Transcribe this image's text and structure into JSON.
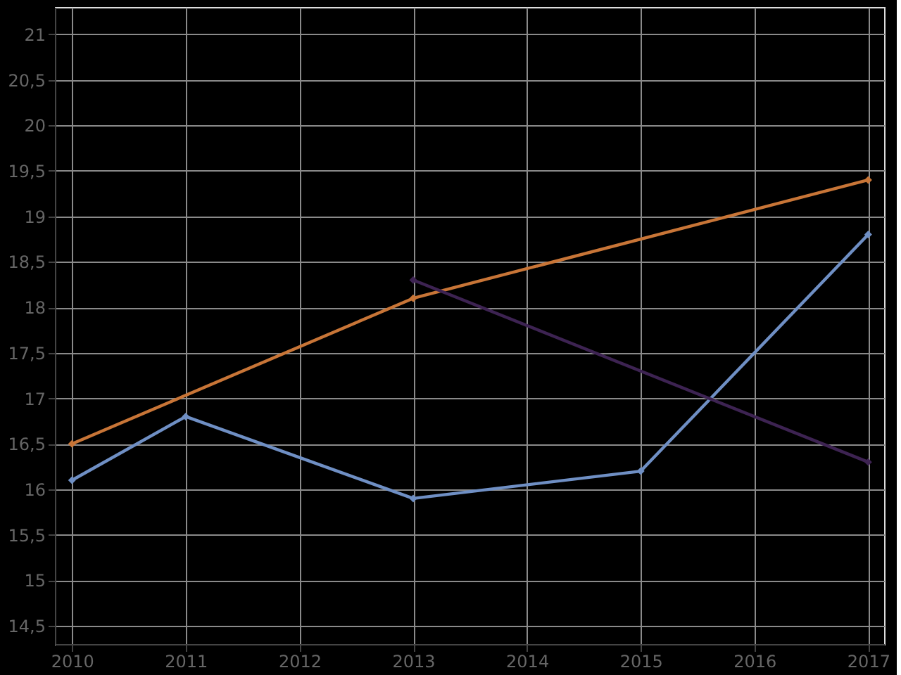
{
  "chart_data": {
    "type": "line",
    "series": [
      {
        "color": "#c87537",
        "x": [
          2010,
          2013,
          2017
        ],
        "values": [
          16.5,
          18.1,
          19.4
        ]
      },
      {
        "color": "#6f8fc4",
        "x": [
          2010,
          2011,
          2013,
          2015,
          2017
        ],
        "values": [
          16.1,
          16.8,
          15.9,
          16.2,
          18.8
        ]
      },
      {
        "color": "#3d2352",
        "x": [
          2013,
          2017
        ],
        "values": [
          18.3,
          16.3
        ]
      }
    ],
    "xlim": [
      2009.85,
      2017.14
    ],
    "xticks": [
      2010,
      2011,
      2012,
      2013,
      2014,
      2015,
      2016,
      2017
    ],
    "ylim": [
      14.3,
      21.3
    ],
    "yticks": [
      {
        "value": 14.5,
        "label": "14,5"
      },
      15,
      {
        "value": 15.5,
        "label": "15,5"
      },
      16,
      {
        "value": 16.5,
        "label": "16,5"
      },
      17,
      {
        "value": 17.5,
        "label": "17,5"
      },
      18,
      {
        "value": 18.5,
        "label": "18,5"
      },
      19,
      {
        "value": 19.5,
        "label": "19,5"
      },
      20,
      {
        "value": 20.5,
        "label": "20,5"
      },
      21
    ],
    "grid": true,
    "marker": "diamond",
    "line_style": "solid"
  }
}
